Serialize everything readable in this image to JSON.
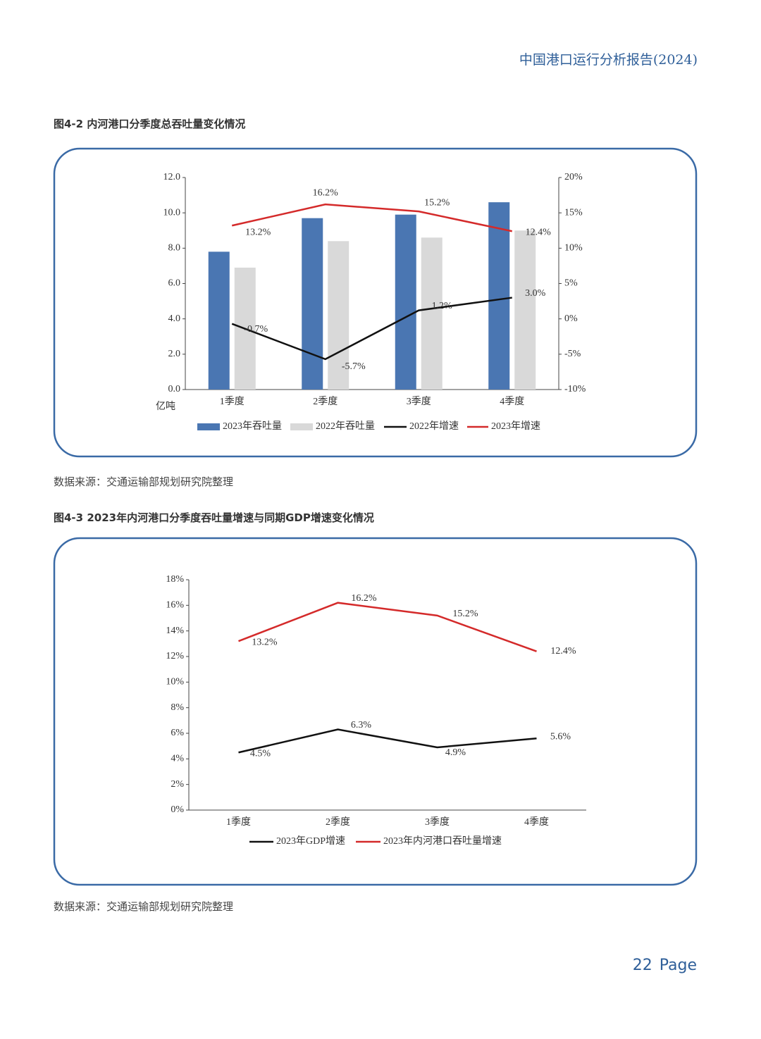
{
  "header": {
    "title": "中国港口运行分析报告(2024)"
  },
  "figures": [
    {
      "caption": "图4-2  内河港口分季度总吞吐量变化情况",
      "source": "数据来源：交通运输部规划研究院整理"
    },
    {
      "caption": "图4-3  2023年内河港口分季度吞吐量增速与同期GDP增速变化情况",
      "source": "数据来源：交通运输部规划研究院整理"
    }
  ],
  "footer": {
    "page_number": "22",
    "page_label": "Page"
  },
  "chart_data": [
    {
      "type": "bar",
      "y_label": "亿吨",
      "categories": [
        "1季度",
        "2季度",
        "3季度",
        "4季度"
      ],
      "series": [
        {
          "name": "2023年吞吐量",
          "type": "bar",
          "color": "#4a76b2",
          "values": [
            7.8,
            9.7,
            9.9,
            10.6
          ]
        },
        {
          "name": "2022年吞吐量",
          "type": "bar",
          "color": "#d9d9d9",
          "values": [
            6.9,
            8.4,
            8.6,
            9.0
          ]
        },
        {
          "name": "2022年增速",
          "type": "line",
          "axis": "y2",
          "color": "#111111",
          "values": [
            -0.7,
            -5.7,
            1.2,
            3.0
          ],
          "value_labels": [
            "-0.7%",
            "-5.7%",
            "1.2%",
            "3.0%"
          ]
        },
        {
          "name": "2023年增速",
          "type": "line",
          "axis": "y2",
          "color": "#d42a2a",
          "values": [
            13.2,
            16.2,
            15.2,
            12.4
          ],
          "value_labels": [
            "13.2%",
            "16.2%",
            "15.2%",
            "12.4%"
          ]
        }
      ],
      "ylim": [
        0,
        12
      ],
      "yticks": [
        {
          "value": 0,
          "label": "0.0"
        },
        {
          "value": 2,
          "label": "2.0"
        },
        {
          "value": 4,
          "label": "4.0"
        },
        {
          "value": 6,
          "label": "6.0"
        },
        {
          "value": 8,
          "label": "8.0"
        },
        {
          "value": 10,
          "label": "10.0"
        },
        {
          "value": 12,
          "label": "12.0"
        }
      ],
      "y2lim": [
        -10,
        20
      ],
      "y2ticks": [
        {
          "value": -10,
          "label": "-10%"
        },
        {
          "value": -5,
          "label": "-5%"
        },
        {
          "value": 0,
          "label": "0%"
        },
        {
          "value": 5,
          "label": "5%"
        },
        {
          "value": 10,
          "label": "10%"
        },
        {
          "value": 15,
          "label": "15%"
        },
        {
          "value": 20,
          "label": "20%"
        }
      ],
      "legend": "bottom"
    },
    {
      "type": "line",
      "categories": [
        "1季度",
        "2季度",
        "3季度",
        "4季度"
      ],
      "series": [
        {
          "name": "2023年GDP增速",
          "color": "#111111",
          "values": [
            4.5,
            6.3,
            4.9,
            5.6
          ],
          "value_labels": [
            "4.5%",
            "6.3%",
            "4.9%",
            "5.6%"
          ]
        },
        {
          "name": "2023年内河港口吞吐量增速",
          "color": "#d42a2a",
          "values": [
            13.2,
            16.2,
            15.2,
            12.4
          ],
          "value_labels": [
            "13.2%",
            "16.2%",
            "15.2%",
            "12.4%"
          ]
        }
      ],
      "ylim": [
        0,
        18
      ],
      "yticks": [
        {
          "value": 0,
          "label": "0%"
        },
        {
          "value": 2,
          "label": "2%"
        },
        {
          "value": 4,
          "label": "4%"
        },
        {
          "value": 6,
          "label": "6%"
        },
        {
          "value": 8,
          "label": "8%"
        },
        {
          "value": 10,
          "label": "10%"
        },
        {
          "value": 12,
          "label": "12%"
        },
        {
          "value": 14,
          "label": "14%"
        },
        {
          "value": 16,
          "label": "16%"
        },
        {
          "value": 18,
          "label": "18%"
        }
      ],
      "legend": "bottom"
    }
  ]
}
